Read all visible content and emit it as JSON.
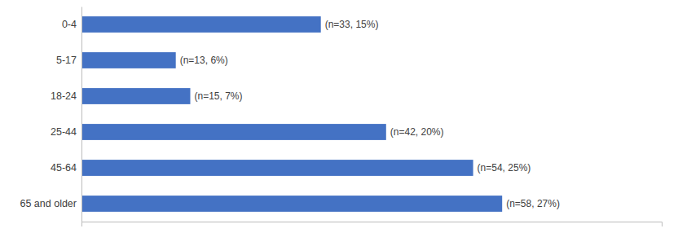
{
  "chart_data": {
    "type": "bar",
    "orientation": "horizontal",
    "categories": [
      "0-4",
      "5-17",
      "18-24",
      "25-44",
      "45-64",
      "65 and older"
    ],
    "values": [
      33,
      13,
      15,
      42,
      54,
      58
    ],
    "value_labels": [
      "(n=33, 15%)",
      "(n=13, 6%)",
      "(n=15, 7%)",
      "(n=42, 20%)",
      "(n=54, 25%)",
      "(n=58, 27%)"
    ],
    "data_labels": true,
    "color": "#4472C4",
    "xlim": [
      0,
      80
    ],
    "tick_labels": "y",
    "grid": false
  }
}
